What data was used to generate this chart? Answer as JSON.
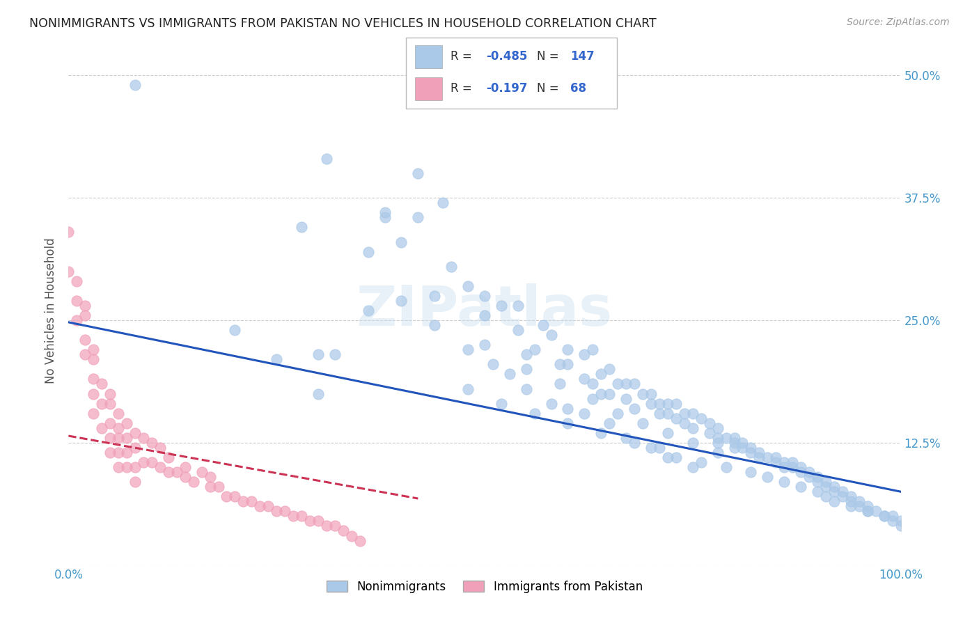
{
  "title": "NONIMMIGRANTS VS IMMIGRANTS FROM PAKISTAN NO VEHICLES IN HOUSEHOLD CORRELATION CHART",
  "source": "Source: ZipAtlas.com",
  "ylabel": "No Vehicles in Household",
  "xlim": [
    0.0,
    1.0
  ],
  "ylim": [
    0.0,
    0.52
  ],
  "yticks": [
    0.0,
    0.125,
    0.25,
    0.375,
    0.5
  ],
  "ytick_labels_right": [
    "",
    "12.5%",
    "25.0%",
    "37.5%",
    "50.0%"
  ],
  "xtick_labels": [
    "0.0%",
    "100.0%"
  ],
  "grid_color": "#cccccc",
  "watermark": "ZIPatlas",
  "blue_color": "#aac8e8",
  "pink_color": "#f0a0b8",
  "blue_line_color": "#2255bb",
  "pink_line_color": "#cc3355",
  "blue_line_x0": 0.0,
  "blue_line_y0": 0.248,
  "blue_line_x1": 1.0,
  "blue_line_y1": 0.075,
  "pink_line_x0": 0.0,
  "pink_line_y0": 0.132,
  "pink_line_x1": 0.42,
  "pink_line_y1": 0.068,
  "nonimmigrants_x": [
    0.08,
    0.31,
    0.38,
    0.4,
    0.42,
    0.45,
    0.28,
    0.3,
    0.32,
    0.36,
    0.38,
    0.42,
    0.44,
    0.46,
    0.48,
    0.5,
    0.5,
    0.52,
    0.54,
    0.54,
    0.55,
    0.56,
    0.57,
    0.58,
    0.59,
    0.6,
    0.6,
    0.62,
    0.62,
    0.63,
    0.63,
    0.64,
    0.64,
    0.65,
    0.65,
    0.66,
    0.67,
    0.67,
    0.68,
    0.68,
    0.69,
    0.7,
    0.7,
    0.71,
    0.71,
    0.72,
    0.72,
    0.73,
    0.73,
    0.74,
    0.74,
    0.75,
    0.75,
    0.76,
    0.77,
    0.77,
    0.78,
    0.78,
    0.78,
    0.79,
    0.8,
    0.8,
    0.8,
    0.81,
    0.81,
    0.82,
    0.82,
    0.83,
    0.83,
    0.84,
    0.85,
    0.85,
    0.86,
    0.86,
    0.87,
    0.87,
    0.88,
    0.88,
    0.89,
    0.89,
    0.9,
    0.9,
    0.91,
    0.91,
    0.92,
    0.92,
    0.93,
    0.93,
    0.94,
    0.94,
    0.95,
    0.95,
    0.96,
    0.96,
    0.97,
    0.98,
    0.99,
    0.99,
    1.0,
    1.0,
    0.53,
    0.55,
    0.58,
    0.6,
    0.62,
    0.65,
    0.67,
    0.7,
    0.72,
    0.75,
    0.36,
    0.4,
    0.44,
    0.48,
    0.51,
    0.2,
    0.25,
    0.3,
    0.48,
    0.52,
    0.56,
    0.6,
    0.64,
    0.68,
    0.71,
    0.73,
    0.76,
    0.79,
    0.82,
    0.84,
    0.86,
    0.88,
    0.9,
    0.91,
    0.92,
    0.94,
    0.96,
    0.98,
    0.5,
    0.55,
    0.59,
    0.63,
    0.66,
    0.69,
    0.72,
    0.75,
    0.78
  ],
  "nonimmigrants_y": [
    0.49,
    0.415,
    0.36,
    0.33,
    0.4,
    0.37,
    0.345,
    0.215,
    0.215,
    0.26,
    0.355,
    0.355,
    0.275,
    0.305,
    0.285,
    0.275,
    0.255,
    0.265,
    0.265,
    0.24,
    0.215,
    0.22,
    0.245,
    0.235,
    0.205,
    0.22,
    0.205,
    0.215,
    0.19,
    0.22,
    0.185,
    0.195,
    0.175,
    0.2,
    0.175,
    0.185,
    0.185,
    0.17,
    0.185,
    0.16,
    0.175,
    0.175,
    0.165,
    0.165,
    0.155,
    0.165,
    0.155,
    0.165,
    0.15,
    0.155,
    0.145,
    0.155,
    0.14,
    0.15,
    0.145,
    0.135,
    0.14,
    0.13,
    0.125,
    0.13,
    0.13,
    0.125,
    0.12,
    0.125,
    0.12,
    0.12,
    0.115,
    0.115,
    0.11,
    0.11,
    0.11,
    0.105,
    0.105,
    0.1,
    0.105,
    0.1,
    0.1,
    0.095,
    0.095,
    0.09,
    0.09,
    0.085,
    0.085,
    0.08,
    0.08,
    0.075,
    0.075,
    0.07,
    0.07,
    0.065,
    0.065,
    0.06,
    0.06,
    0.055,
    0.055,
    0.05,
    0.05,
    0.045,
    0.045,
    0.04,
    0.195,
    0.18,
    0.165,
    0.16,
    0.155,
    0.145,
    0.13,
    0.12,
    0.11,
    0.1,
    0.32,
    0.27,
    0.245,
    0.22,
    0.205,
    0.24,
    0.21,
    0.175,
    0.18,
    0.165,
    0.155,
    0.145,
    0.135,
    0.125,
    0.12,
    0.11,
    0.105,
    0.1,
    0.095,
    0.09,
    0.085,
    0.08,
    0.075,
    0.07,
    0.065,
    0.06,
    0.055,
    0.05,
    0.225,
    0.2,
    0.185,
    0.17,
    0.155,
    0.145,
    0.135,
    0.125,
    0.115
  ],
  "immigrants_x": [
    0.0,
    0.0,
    0.01,
    0.01,
    0.01,
    0.02,
    0.02,
    0.02,
    0.02,
    0.03,
    0.03,
    0.03,
    0.03,
    0.03,
    0.04,
    0.04,
    0.04,
    0.05,
    0.05,
    0.05,
    0.05,
    0.05,
    0.06,
    0.06,
    0.06,
    0.06,
    0.06,
    0.07,
    0.07,
    0.07,
    0.07,
    0.08,
    0.08,
    0.08,
    0.08,
    0.09,
    0.09,
    0.1,
    0.1,
    0.11,
    0.11,
    0.12,
    0.12,
    0.13,
    0.14,
    0.14,
    0.15,
    0.16,
    0.17,
    0.17,
    0.18,
    0.19,
    0.2,
    0.21,
    0.22,
    0.23,
    0.24,
    0.25,
    0.26,
    0.27,
    0.28,
    0.29,
    0.3,
    0.31,
    0.32,
    0.33,
    0.34,
    0.35
  ],
  "immigrants_y": [
    0.34,
    0.3,
    0.29,
    0.27,
    0.25,
    0.265,
    0.255,
    0.23,
    0.215,
    0.22,
    0.21,
    0.19,
    0.175,
    0.155,
    0.185,
    0.165,
    0.14,
    0.175,
    0.165,
    0.145,
    0.13,
    0.115,
    0.155,
    0.14,
    0.13,
    0.115,
    0.1,
    0.145,
    0.13,
    0.115,
    0.1,
    0.135,
    0.12,
    0.1,
    0.085,
    0.13,
    0.105,
    0.125,
    0.105,
    0.12,
    0.1,
    0.11,
    0.095,
    0.095,
    0.09,
    0.1,
    0.085,
    0.095,
    0.08,
    0.09,
    0.08,
    0.07,
    0.07,
    0.065,
    0.065,
    0.06,
    0.06,
    0.055,
    0.055,
    0.05,
    0.05,
    0.045,
    0.045,
    0.04,
    0.04,
    0.035,
    0.03,
    0.025
  ]
}
